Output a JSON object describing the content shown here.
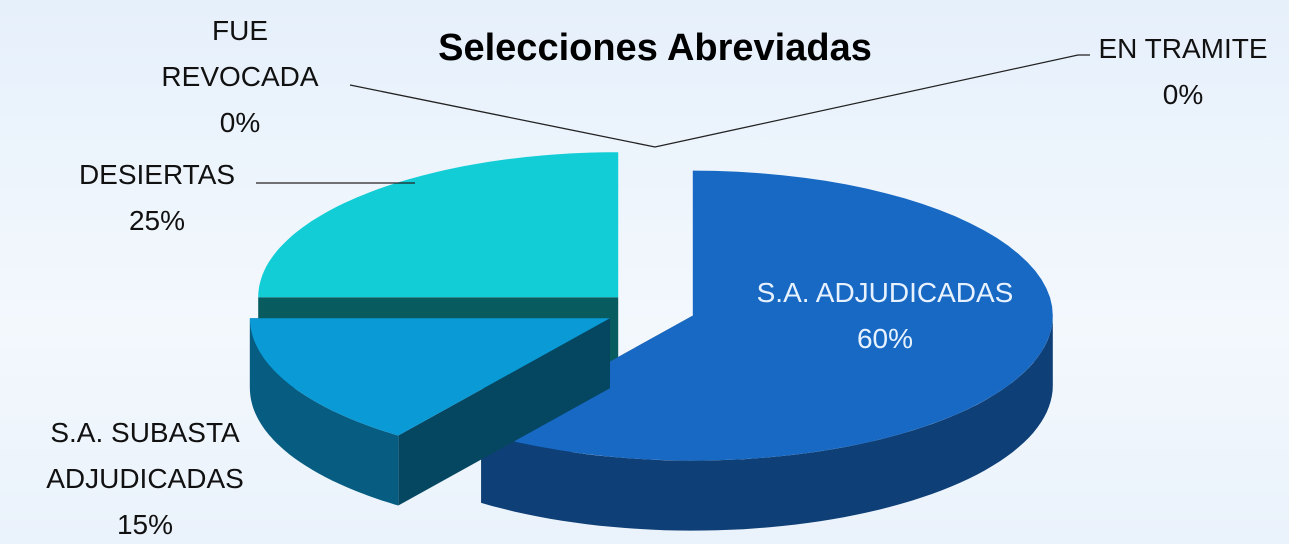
{
  "chart_data": {
    "type": "pie",
    "title": "Selecciones Abreviadas",
    "categories": [
      "S.A. ADJUDICADAS",
      "S.A. SUBASTA ADJUDICADAS",
      "DESIERTAS",
      "FUE REVOCADA",
      "EN TRAMITE"
    ],
    "values": [
      60,
      15,
      25,
      0,
      0
    ],
    "value_labels": [
      "60%",
      "15%",
      "25%",
      "0%",
      "0%"
    ],
    "colors": [
      "#1769c4",
      "#0a9bd7",
      "#12cdd6",
      "#4aa3df",
      "#7fc8e8"
    ]
  }
}
